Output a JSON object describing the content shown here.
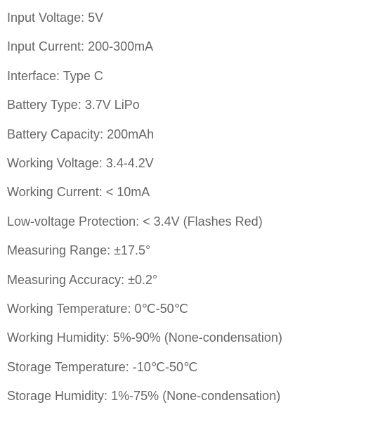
{
  "text_color": "#666666",
  "background_color": "#ffffff",
  "font_size": 18,
  "specs": [
    {
      "label": "Input Voltage: ",
      "value": "5V"
    },
    {
      "label": "Input Current: ",
      "value": "200-300mA"
    },
    {
      "label": "Interface: ",
      "value": "Type C"
    },
    {
      "label": "Battery Type: ",
      "value": "3.7V LiPo"
    },
    {
      "label": "Battery Capacity: ",
      "value": "200mAh"
    },
    {
      "label": "Working Voltage: ",
      "value": "3.4-4.2V"
    },
    {
      "label": "Working Current: ",
      "value": " < 10mA"
    },
    {
      "label": "Low-voltage Protection: ",
      "value": " < 3.4V (Flashes Red)"
    },
    {
      "label": "Measuring Range: ",
      "value": "±17.5°"
    },
    {
      "label": "Measuring Accuracy: ",
      "value": "±0.2°"
    },
    {
      "label": "Working Temperature: ",
      "value": "0℃-50℃"
    },
    {
      "label": "Working Humidity: ",
      "value": "5%-90% (None-condensation)"
    },
    {
      "label": "Storage Temperature: ",
      "value": "-10℃-50℃"
    },
    {
      "label": "Storage Humidity: ",
      "value": "1%-75% (None-condensation)"
    }
  ]
}
